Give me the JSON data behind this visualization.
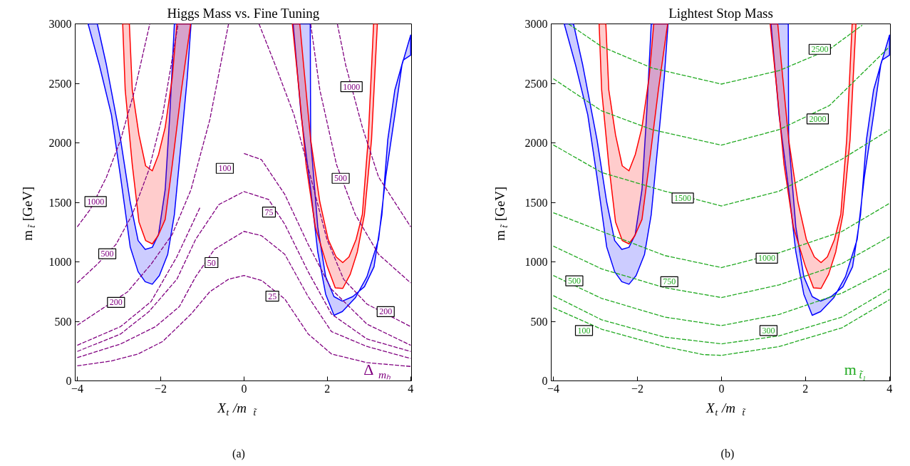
{
  "chart_data": [
    {
      "type": "line",
      "title": "Higgs Mass vs. Fine Tuning",
      "xlabel": "X$_{t}$/m$_{t̃}$",
      "ylabel": "m$_{t̃}$  [GeV]",
      "xlim": [
        -4.05,
        4.02
      ],
      "ylim": [
        0,
        3000
      ],
      "xticks": [
        -4,
        -2,
        0,
        2,
        4
      ],
      "yticks": [
        0,
        500,
        1000,
        1500,
        2000,
        2500,
        3000
      ],
      "line_style": "dashed",
      "series": [
        {
          "type": "area",
          "color": "#0000ff",
          "x": [
            -3.74,
            -3.47,
            -3.18,
            -2.96,
            -2.73,
            -2.54,
            -2.37,
            -2.2,
            -2.03,
            -1.83,
            -1.67,
            -1.5,
            -1.36,
            -1.27,
            -1.67,
            -1.78,
            -1.89,
            -2.05,
            -2.2,
            -2.37,
            -2.54,
            -2.73,
            -2.96,
            -3.3,
            -3.52
          ],
          "values": [
            3000,
            2654,
            2236,
            1712,
            1126,
            917,
            833,
            812,
            885,
            1063,
            1398,
            2026,
            2550,
            3000,
            3000,
            2236,
            1608,
            1231,
            1122,
            1105,
            1179,
            1503,
            2026,
            2654,
            3000
          ]
        },
        {
          "type": "area",
          "color": "#0000ff",
          "x": [
            1.18,
            1.37,
            1.6,
            1.77,
            1.96,
            2.16,
            2.36,
            2.67,
            2.95,
            3.23,
            3.4,
            3.62,
            3.79,
            4.0,
            4.0,
            3.82,
            3.62,
            3.45,
            3.31,
            3.12,
            2.89,
            2.61,
            2.36,
            2.16,
            1.96,
            1.77,
            1.6,
            1.59
          ],
          "values": [
            3000,
            2236,
            1608,
            1084,
            728,
            551,
            582,
            697,
            875,
            1189,
            1712,
            2236,
            2654,
            2906,
            2738,
            2696,
            2445,
            2026,
            1398,
            959,
            791,
            708,
            670,
            708,
            875,
            1294,
            2026,
            3000
          ]
        },
        {
          "type": "area",
          "color": "#ff0000",
          "x": [
            -2.91,
            -2.85,
            -2.68,
            -2.52,
            -2.36,
            -2.2,
            -2.06,
            -1.89,
            -1.72,
            -1.5,
            -1.28,
            -1.61,
            -1.72,
            -1.89,
            -2.05,
            -2.2,
            -2.36,
            -2.52,
            -2.68,
            -2.75
          ],
          "values": [
            3000,
            2445,
            1817,
            1336,
            1179,
            1151,
            1220,
            1357,
            1817,
            2445,
            3000,
            3000,
            2550,
            2131,
            1901,
            1765,
            1807,
            2068,
            2445,
            3000
          ]
        },
        {
          "type": "area",
          "color": "#ff0000",
          "x": [
            1.16,
            1.32,
            1.49,
            1.71,
            2.0,
            2.19,
            2.37,
            2.55,
            2.72,
            2.89,
            3.06,
            3.2,
            3.11,
            2.98,
            2.84,
            2.69,
            2.52,
            2.37,
            2.21,
            2.02,
            1.82,
            1.6,
            1.43,
            1.34
          ],
          "values": [
            3000,
            2445,
            1817,
            1294,
            959,
            781,
            777,
            896,
            1084,
            1398,
            2026,
            3000,
            3000,
            2026,
            1398,
            1189,
            1042,
            994,
            1042,
            1189,
            1503,
            2026,
            2654,
            3000
          ]
        },
        {
          "color": "#800080",
          "x": [
            -4,
            -3.18,
            -2.54,
            -1.95,
            -1.27,
            -0.82,
            -0.37,
            0,
            0.42,
            0.98,
            1.54,
            2.1,
            2.95,
            4
          ],
          "values": [
            126,
            167,
            226,
            331,
            561,
            749,
            854,
            885,
            844,
            687,
            394,
            226,
            153,
            121
          ]
        },
        {
          "color": "#800080",
          "x": [
            -4,
            -2.96,
            -2.12,
            -1.55,
            -1.16,
            -0.71,
            0,
            0.42,
            0.98,
            1.54,
            2.1,
            2.95,
            4
          ],
          "values": [
            195,
            310,
            456,
            624,
            875,
            1105,
            1256,
            1220,
            1063,
            708,
            414,
            289,
            188
          ]
        },
        {
          "color": "#800080",
          "x": [
            -4,
            -2.96,
            -2.28,
            -1.61,
            -1.16,
            -0.6,
            0,
            0.59,
            0.98,
            1.54,
            2.1,
            2.95,
            4
          ],
          "values": [
            247,
            394,
            582,
            854,
            1189,
            1482,
            1591,
            1524,
            1315,
            917,
            561,
            352,
            247
          ]
        },
        {
          "color": "#800080",
          "x": [
            -4,
            -2.96,
            -2.23,
            -1.61,
            -1.05,
            -0.6,
            0,
            0.42,
            0.98,
            1.54,
            2.1,
            2.95,
            4
          ],
          "values": [
            299,
            456,
            666,
            1043,
            1461,
            null,
            1911,
            1859,
            1566,
            1147,
            770,
            477,
            299
          ]
        },
        {
          "color": "#800080",
          "x": [
            -4,
            -2.79,
            -2.23,
            -1.72,
            -1.27,
            -0.82,
            -0.37
          ],
          "values": [
            467,
            749,
            980,
            1231,
            1608,
            2194,
            3000
          ]
        },
        {
          "color": "#800080",
          "x": [
            -4,
            -3.52,
            -3.07,
            -2.68,
            -2.28,
            -1.95,
            -1.58
          ],
          "values": [
            823,
            980,
            1147,
            1398,
            1775,
            2236,
            3000
          ]
        },
        {
          "color": "#800080",
          "x": [
            -4,
            -3.69,
            -3.3,
            -2.96,
            -2.62,
            -2.26
          ],
          "values": [
            1294,
            1440,
            1712,
            2026,
            2445,
            3000
          ]
        },
        {
          "color": "#800080",
          "x": [
            0.36,
            0.75,
            1.2,
            1.6,
            1.99,
            2.39,
            2.95,
            4
          ],
          "values": [
            3000,
            2654,
            2236,
            1712,
            1189,
            854,
            645,
            456
          ]
        },
        {
          "color": "#800080",
          "x": [
            1.6,
            1.82,
            2.22,
            2.67,
            3.23,
            4
          ],
          "values": [
            3000,
            2445,
            1817,
            1398,
            1063,
            823
          ]
        },
        {
          "color": "#800080",
          "x": [
            2.24,
            2.44,
            2.84,
            3.23,
            4
          ],
          "values": [
            3000,
            2654,
            2131,
            1712,
            1294
          ]
        }
      ],
      "annotations": [
        {
          "text": "1000",
          "x": -3.56,
          "y": 1507
        },
        {
          "text": "500",
          "x": -3.28,
          "y": 1068
        },
        {
          "text": "200",
          "x": -3.07,
          "y": 659
        },
        {
          "text": "100",
          "x": -0.46,
          "y": 1786
        },
        {
          "text": "75",
          "x": 0.6,
          "y": 1419
        },
        {
          "text": "50",
          "x": -0.78,
          "y": 994
        },
        {
          "text": "25",
          "x": 0.68,
          "y": 712
        },
        {
          "text": "1000",
          "x": 2.58,
          "y": 2472
        },
        {
          "text": "500",
          "x": 2.32,
          "y": 1702
        },
        {
          "text": "200",
          "x": 3.4,
          "y": 582
        },
        "Δ$_{mₕ}$",
        "(a)"
      ]
    },
    {
      "type": "line",
      "title": "Lightest Stop Mass",
      "xlabel": "X$_{t}$/m$_{t̃}$",
      "ylabel": "m$_{t̃}$  [GeV]",
      "xlim": [
        -4.05,
        4.02
      ],
      "ylim": [
        0,
        3000
      ],
      "xticks": [
        -4,
        -2,
        0,
        2,
        4
      ],
      "yticks": [
        0,
        500,
        1000,
        1500,
        2000,
        2500,
        3000
      ],
      "line_style": "dashed",
      "series": [
        {
          "type": "area",
          "color": "#0000ff",
          "x": [
            -3.74,
            -3.47,
            -3.18,
            -2.96,
            -2.73,
            -2.54,
            -2.37,
            -2.2,
            -2.03,
            -1.83,
            -1.67,
            -1.5,
            -1.36,
            -1.27,
            -1.67,
            -1.78,
            -1.89,
            -2.05,
            -2.2,
            -2.37,
            -2.54,
            -2.73,
            -2.96,
            -3.3,
            -3.52
          ],
          "values": [
            3000,
            2654,
            2236,
            1712,
            1126,
            917,
            833,
            812,
            885,
            1063,
            1398,
            2026,
            2550,
            3000,
            3000,
            2236,
            1608,
            1231,
            1122,
            1105,
            1179,
            1503,
            2026,
            2654,
            3000
          ]
        },
        {
          "type": "area",
          "color": "#0000ff",
          "x": [
            1.18,
            1.37,
            1.6,
            1.77,
            1.96,
            2.16,
            2.36,
            2.67,
            2.95,
            3.23,
            3.4,
            3.62,
            3.79,
            4.0,
            4.0,
            3.82,
            3.62,
            3.45,
            3.31,
            3.12,
            2.89,
            2.61,
            2.36,
            2.16,
            1.96,
            1.77,
            1.6,
            1.59
          ],
          "values": [
            3000,
            2236,
            1608,
            1084,
            728,
            551,
            582,
            697,
            875,
            1189,
            1712,
            2236,
            2654,
            2906,
            2738,
            2696,
            2445,
            2026,
            1398,
            959,
            791,
            708,
            670,
            708,
            875,
            1294,
            2026,
            3000
          ]
        },
        {
          "type": "area",
          "color": "#ff0000",
          "x": [
            -2.91,
            -2.85,
            -2.68,
            -2.52,
            -2.36,
            -2.2,
            -2.06,
            -1.89,
            -1.72,
            -1.5,
            -1.28,
            -1.61,
            -1.72,
            -1.89,
            -2.05,
            -2.2,
            -2.36,
            -2.52,
            -2.68,
            -2.75
          ],
          "values": [
            3000,
            2445,
            1817,
            1336,
            1179,
            1151,
            1220,
            1357,
            1817,
            2445,
            3000,
            3000,
            2550,
            2131,
            1901,
            1765,
            1807,
            2068,
            2445,
            3000
          ]
        },
        {
          "type": "area",
          "color": "#ff0000",
          "x": [
            1.16,
            1.32,
            1.49,
            1.71,
            2.0,
            2.19,
            2.37,
            2.55,
            2.72,
            2.89,
            3.06,
            3.2,
            3.11,
            2.98,
            2.84,
            2.69,
            2.52,
            2.37,
            2.21,
            2.02,
            1.82,
            1.6,
            1.43,
            1.34
          ],
          "values": [
            3000,
            2445,
            1817,
            1294,
            959,
            781,
            777,
            896,
            1084,
            1398,
            2026,
            3000,
            3000,
            2026,
            1398,
            1189,
            1042,
            994,
            1042,
            1189,
            1503,
            2026,
            2654,
            3000
          ]
        },
        {
          "color": "#22aa22",
          "x": [
            -3.64,
            -2.85,
            -1.65,
            0,
            1.37,
            2.57,
            3.35
          ],
          "values": [
            3000,
            2809,
            2629,
            2494,
            2607,
            2786,
            2989
          ]
        },
        {
          "color": "#22aa22",
          "x": [
            -4,
            -2.85,
            -1.65,
            0,
            1.37,
            2.57,
            4
          ],
          "values": [
            2539,
            2269,
            2111,
            1981,
            2111,
            2314,
            2809
          ]
        },
        {
          "color": "#22aa22",
          "x": [
            -4,
            -2.85,
            -1.35,
            0,
            1.37,
            2.87,
            4
          ],
          "values": [
            1983,
            1751,
            1594,
            1470,
            1594,
            1864,
            2111
          ]
        },
        {
          "color": "#22aa22",
          "x": [
            -4,
            -2.85,
            -1.35,
            0,
            1.37,
            2.87,
            4
          ],
          "values": [
            1413,
            1256,
            1053,
            952,
            1076,
            1256,
            1492
          ]
        },
        {
          "color": "#22aa22",
          "x": [
            -4,
            -2.85,
            -1.35,
            0,
            1.37,
            2.87,
            4
          ],
          "values": [
            1132,
            941,
            783,
            700,
            806,
            986,
            1211
          ]
        },
        {
          "color": "#22aa22",
          "x": [
            -4,
            -2.85,
            -1.35,
            0,
            1.37,
            2.87,
            4
          ],
          "values": [
            885,
            693,
            536,
            464,
            558,
            738,
            941
          ]
        },
        {
          "color": "#22aa22",
          "x": [
            -4,
            -2.85,
            -1.35,
            0,
            1.37,
            2.87,
            4
          ],
          "values": [
            716,
            513,
            367,
            311,
            378,
            536,
            772
          ]
        },
        {
          "color": "#22aa22",
          "x": [
            -4,
            -2.85,
            -1.35,
            -0.44,
            0,
            1.37,
            2.87,
            4
          ],
          "values": [
            614,
            434,
            288,
            221,
            214,
            288,
            446,
            682
          ]
        }
      ],
      "annotations": [
        {
          "text": "2500",
          "x": 2.34,
          "y": 2786
        },
        {
          "text": "2000",
          "x": 2.29,
          "y": 2201
        },
        {
          "text": "1500",
          "x": -0.92,
          "y": 1537
        },
        {
          "text": "1000",
          "x": 1.08,
          "y": 1031
        },
        {
          "text": "750",
          "x": -1.24,
          "y": 833
        },
        {
          "text": "500",
          "x": -3.5,
          "y": 840
        },
        {
          "text": "300",
          "x": 1.12,
          "y": 423
        },
        {
          "text": "100",
          "x": -3.27,
          "y": 423
        },
        "m$_{t̃₁}$",
        "(b)"
      ]
    }
  ]
}
